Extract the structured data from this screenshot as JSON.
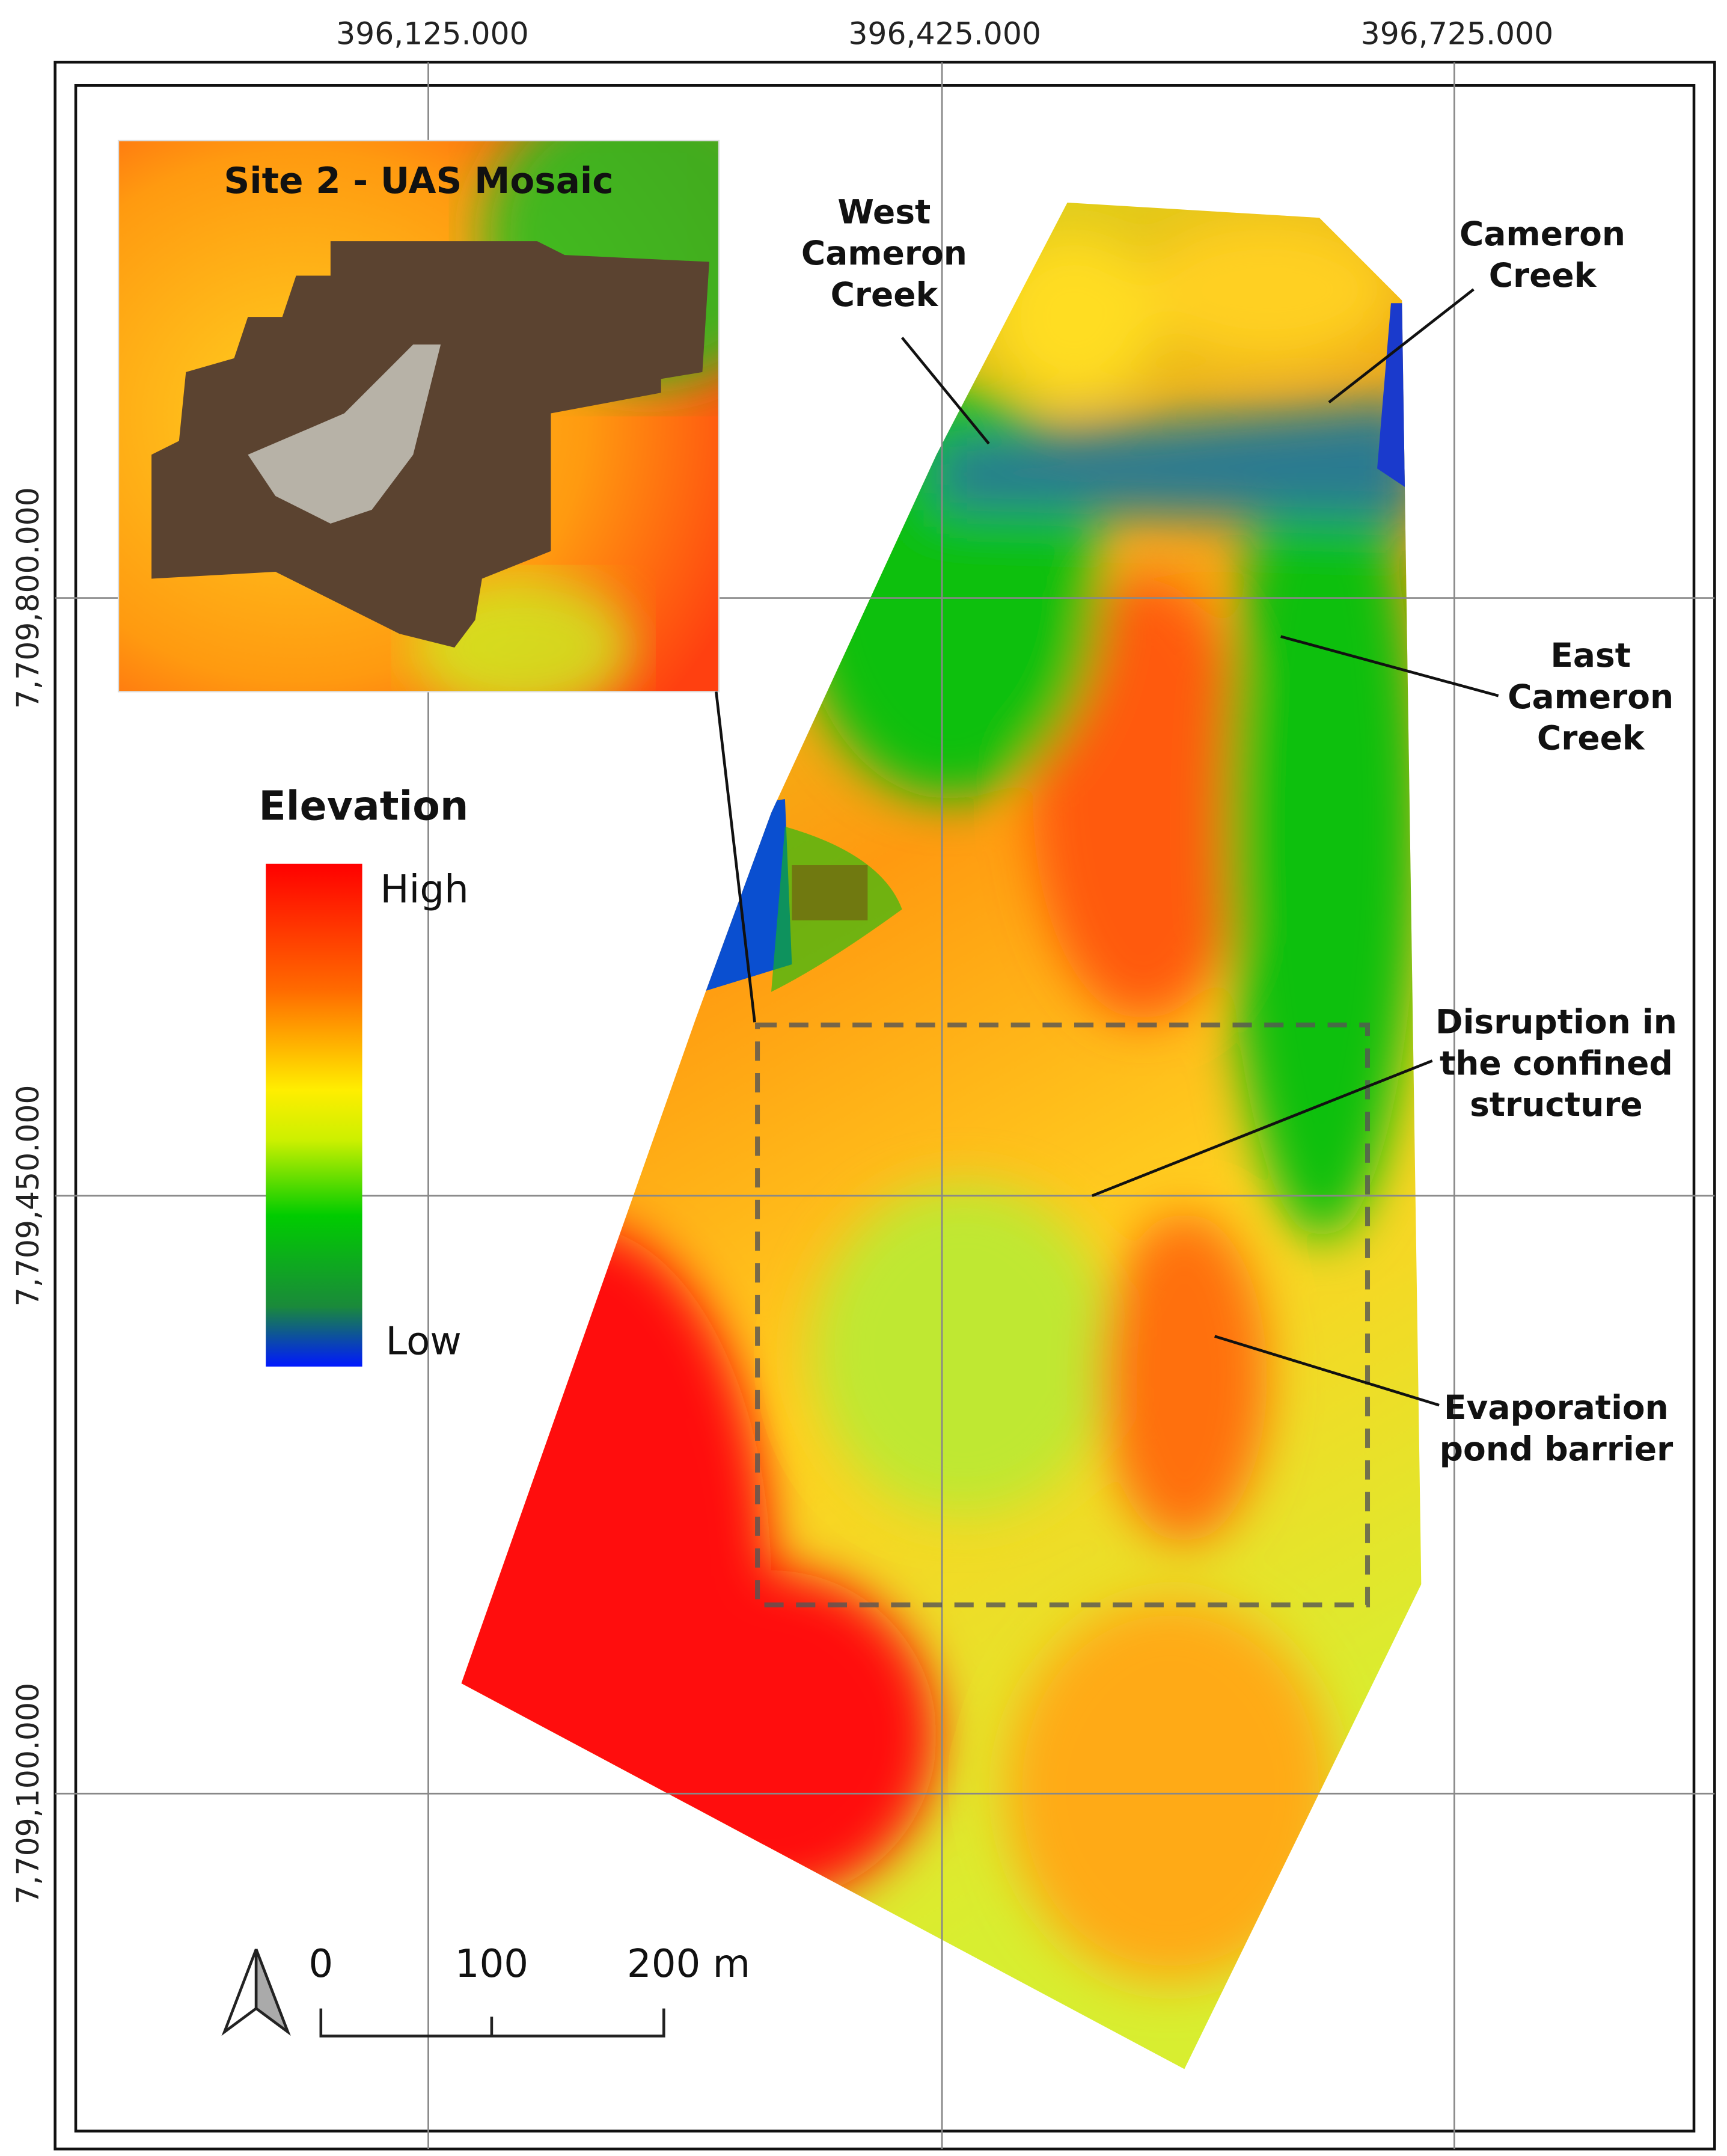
{
  "map": {
    "x_coordinates": [
      "396,125.000",
      "396,425.000",
      "396,725.000"
    ],
    "y_coordinates": [
      "7,709,800.000",
      "7,709,450.000",
      "7,709,100.000"
    ],
    "inset": {
      "title": "Site 2 - UAS Mosaic"
    },
    "legend": {
      "title": "Elevation",
      "high": "High",
      "low": "Low"
    },
    "annotations": [
      {
        "lines": [
          "West",
          "Cameron",
          "Creek"
        ]
      },
      {
        "lines": [
          "Cameron",
          "Creek"
        ]
      },
      {
        "lines": [
          "East",
          "Cameron",
          "Creek"
        ]
      },
      {
        "lines": [
          "Disruption in",
          "the confined",
          "structure"
        ]
      },
      {
        "lines": [
          "Evaporation",
          "pond barrier"
        ]
      }
    ],
    "scale_bar": {
      "labels": [
        "0",
        "100",
        "200 m"
      ]
    }
  }
}
